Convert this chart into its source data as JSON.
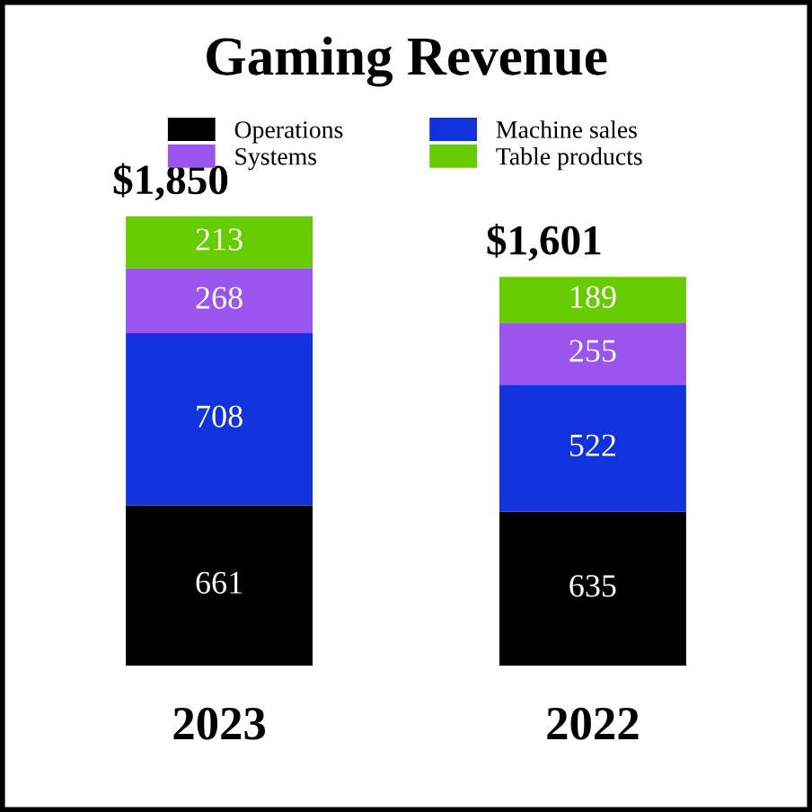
{
  "chart_data": {
    "type": "bar",
    "title": "Gaming Revenue",
    "stacked": true,
    "data_labels": true,
    "legend": "top",
    "categories": [
      "2023",
      "2022"
    ],
    "series": [
      {
        "name": "Operations",
        "color": "#000000",
        "values": [
          661,
          635
        ]
      },
      {
        "name": "Machine sales",
        "color": "#1133dd",
        "values": [
          708,
          522
        ]
      },
      {
        "name": "Systems",
        "color": "#9955ee",
        "values": [
          268,
          255
        ]
      },
      {
        "name": "Table products",
        "color": "#66cc00",
        "values": [
          213,
          189
        ]
      }
    ],
    "totals": [
      "$1,850",
      "$1,601"
    ]
  }
}
